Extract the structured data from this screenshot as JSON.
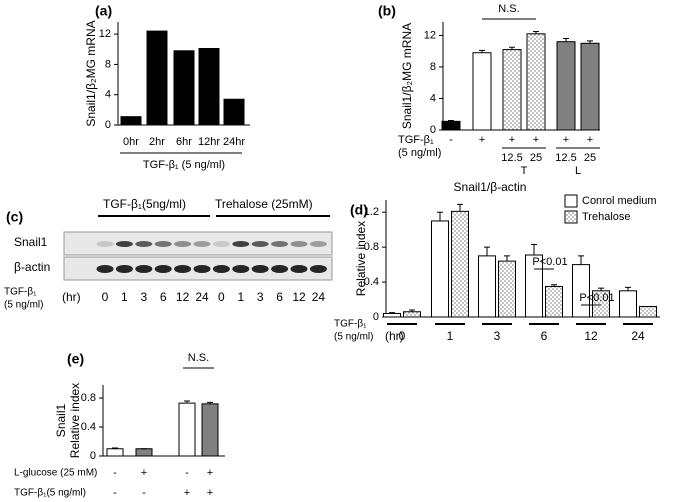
{
  "chart_data": [
    {
      "type": "bar",
      "label": "(a)",
      "ylabel": [
        "Snail1/β₂MG mRNA"
      ],
      "xlabel": "TGF-β₁ (5 ng/ml)",
      "categories": [
        "0hr",
        "2hr",
        "6hr",
        "12hr",
        "24hr"
      ],
      "values": [
        1.1,
        12.4,
        9.8,
        10.1,
        3.4
      ],
      "fills": [
        "#000000",
        "#000000",
        "#000000",
        "#000000",
        "#000000"
      ],
      "ylim": [
        0,
        13.6
      ],
      "yticks": [
        0,
        4,
        8,
        12
      ]
    },
    {
      "type": "bar",
      "label": "(b)",
      "ylabel": [
        "Snail1/β₂MG mRNA"
      ],
      "annotation": "N.S.",
      "condition_label": [
        "TGF-β₁",
        "(5 ng/ml)"
      ],
      "conditions": [
        "-",
        "+",
        "+",
        "+",
        "+",
        "+"
      ],
      "doses": [
        null,
        null,
        "12.5",
        "25",
        "12.5",
        "25"
      ],
      "groups": [
        "T",
        "L"
      ],
      "values": [
        1.1,
        9.8,
        10.2,
        12.2,
        11.2,
        11.0
      ],
      "errors": [
        0.1,
        0.3,
        0.3,
        0.3,
        0.4,
        0.3
      ],
      "fills": [
        "#000000",
        "#ffffff",
        "dotted",
        "dotted",
        "#808080",
        "#808080"
      ],
      "ylim": [
        0,
        13.7
      ],
      "yticks": [
        0,
        4,
        8,
        12
      ]
    },
    {
      "type": "grouped_bar",
      "label": "(d)",
      "title": "Snail1/β-actin",
      "ylabel": [
        "Relative index"
      ],
      "condition_label": [
        "TGF-β₁",
        "(5 ng/ml)"
      ],
      "unit": "(hr)",
      "categories": [
        "0",
        "1",
        "3",
        "6",
        "12",
        "24"
      ],
      "series": [
        {
          "name": "Conrol medium",
          "fill": "#ffffff",
          "values": [
            0.04,
            1.1,
            0.7,
            0.71,
            0.6,
            0.3
          ],
          "errors": [
            0.01,
            0.1,
            0.1,
            0.12,
            0.1,
            0.04
          ]
        },
        {
          "name": "Trehalose",
          "fill": "dotted",
          "values": [
            0.06,
            1.21,
            0.64,
            0.35,
            0.3,
            0.12
          ],
          "errors": [
            0.02,
            0.08,
            0.06,
            0.02,
            0.03,
            0.0
          ]
        }
      ],
      "annotations": [
        "P<0.01",
        "P<0.01"
      ],
      "ylim": [
        0,
        1.34
      ],
      "yticks": [
        0,
        0.4,
        0.8,
        1.2
      ],
      "legend": "top-right"
    },
    {
      "type": "bar",
      "label": "(e)",
      "ylabel": [
        "Snail1",
        "Relative index"
      ],
      "annotation": "N.S.",
      "condition_rows": [
        {
          "label": "L-glucose (25 mM)",
          "values": [
            "-",
            "+",
            "-",
            "+"
          ]
        },
        {
          "label": "TGF-β₁(5 ng/ml)",
          "values": [
            "-",
            "-",
            "+",
            "+"
          ]
        }
      ],
      "values": [
        0.1,
        0.1,
        0.73,
        0.72
      ],
      "errors": [
        0.01,
        0.0,
        0.03,
        0.02
      ],
      "fills": [
        "#ffffff",
        "#808080",
        "#ffffff",
        "#808080"
      ],
      "ylim": [
        0,
        0.98
      ],
      "yticks": [
        0,
        0.4,
        0.8
      ]
    }
  ],
  "blot": {
    "label": "(c)",
    "treatments": [
      "TGF-β₁(5ng/ml)",
      "Trehalose (25mM)"
    ],
    "rows": [
      "Snail1",
      "β-actin"
    ],
    "condition_label": [
      "TGF-β₁",
      "(5 ng/ml)"
    ],
    "unit": "(hr)",
    "lanes": [
      "0",
      "1",
      "3",
      "6",
      "12",
      "24",
      "0",
      "1",
      "3",
      "6",
      "12",
      "24"
    ]
  }
}
